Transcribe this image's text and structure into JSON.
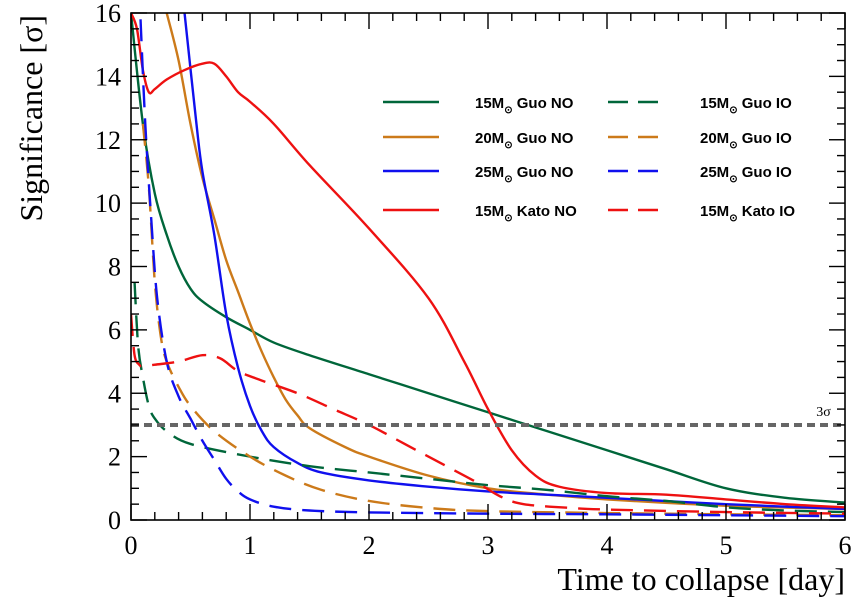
{
  "chart_data": {
    "type": "line",
    "xlabel": "Time to collapse [day]",
    "ylabel": "Significance [σ]",
    "xlim": [
      0,
      6
    ],
    "ylim": [
      0,
      16
    ],
    "xticks": [
      "0",
      "1",
      "2",
      "3",
      "4",
      "5",
      "6"
    ],
    "yticks": [
      "0",
      "2",
      "4",
      "6",
      "8",
      "10",
      "12",
      "14",
      "16"
    ],
    "grid": false,
    "legend_position": "top-right",
    "reference_line": {
      "y": 3,
      "label": "3σ",
      "color": "#666666",
      "style": "dashed"
    },
    "series": [
      {
        "name": "15M⊙ Guo NO",
        "mass": "15M",
        "model": "Guo NO",
        "color": "#00663a",
        "dash": "solid",
        "points": [
          [
            0.0,
            16
          ],
          [
            0.1,
            12.5
          ],
          [
            0.2,
            10.3
          ],
          [
            0.3,
            9.0
          ],
          [
            0.4,
            8.0
          ],
          [
            0.5,
            7.3
          ],
          [
            0.6,
            6.9
          ],
          [
            0.8,
            6.4
          ],
          [
            1.0,
            6.0
          ],
          [
            1.2,
            5.6
          ],
          [
            1.5,
            5.2
          ],
          [
            2.0,
            4.6
          ],
          [
            2.5,
            4.0
          ],
          [
            3.0,
            3.4
          ],
          [
            3.5,
            2.8
          ],
          [
            4.0,
            2.2
          ],
          [
            4.5,
            1.6
          ],
          [
            5.0,
            1.0
          ],
          [
            5.5,
            0.7
          ],
          [
            6.0,
            0.55
          ]
        ]
      },
      {
        "name": "20M⊙ Guo NO",
        "mass": "20M",
        "model": "Guo NO",
        "color": "#cc7a1a",
        "dash": "solid",
        "points": [
          [
            0.3,
            16
          ],
          [
            0.4,
            14.5
          ],
          [
            0.5,
            12.5
          ],
          [
            0.6,
            10.8
          ],
          [
            0.7,
            9.5
          ],
          [
            0.8,
            8.2
          ],
          [
            0.9,
            7.2
          ],
          [
            1.0,
            6.2
          ],
          [
            1.1,
            5.3
          ],
          [
            1.2,
            4.5
          ],
          [
            1.3,
            3.8
          ],
          [
            1.4,
            3.3
          ],
          [
            1.5,
            2.9
          ],
          [
            1.8,
            2.3
          ],
          [
            2.0,
            2.0
          ],
          [
            2.5,
            1.4
          ],
          [
            3.0,
            1.0
          ],
          [
            3.5,
            0.8
          ],
          [
            4.0,
            0.65
          ],
          [
            5.0,
            0.45
          ],
          [
            6.0,
            0.35
          ]
        ]
      },
      {
        "name": "25M⊙ Guo NO",
        "mass": "25M",
        "model": "Guo NO",
        "color": "#1010ee",
        "dash": "solid",
        "points": [
          [
            0.45,
            16
          ],
          [
            0.55,
            12.5
          ],
          [
            0.6,
            11.0
          ],
          [
            0.7,
            9.0
          ],
          [
            0.8,
            6.5
          ],
          [
            0.9,
            4.8
          ],
          [
            1.0,
            3.6
          ],
          [
            1.1,
            2.8
          ],
          [
            1.2,
            2.3
          ],
          [
            1.4,
            1.8
          ],
          [
            1.6,
            1.5
          ],
          [
            2.0,
            1.25
          ],
          [
            2.5,
            1.05
          ],
          [
            3.0,
            0.9
          ],
          [
            3.5,
            0.8
          ],
          [
            4.0,
            0.7
          ],
          [
            5.0,
            0.5
          ],
          [
            6.0,
            0.35
          ]
        ]
      },
      {
        "name": "15M⊙ Kato NO",
        "mass": "15M",
        "model": "Kato NO",
        "color": "#ee1111",
        "dash": "solid",
        "points": [
          [
            0.0,
            16
          ],
          [
            0.05,
            15.5
          ],
          [
            0.1,
            14.2
          ],
          [
            0.15,
            13.5
          ],
          [
            0.2,
            13.6
          ],
          [
            0.3,
            13.9
          ],
          [
            0.45,
            14.2
          ],
          [
            0.6,
            14.4
          ],
          [
            0.7,
            14.4
          ],
          [
            0.8,
            14.0
          ],
          [
            0.9,
            13.5
          ],
          [
            1.0,
            13.2
          ],
          [
            1.2,
            12.5
          ],
          [
            1.5,
            11.2
          ],
          [
            2.0,
            9.2
          ],
          [
            2.5,
            7.0
          ],
          [
            2.8,
            5.0
          ],
          [
            3.0,
            3.5
          ],
          [
            3.2,
            2.2
          ],
          [
            3.4,
            1.4
          ],
          [
            3.6,
            1.05
          ],
          [
            4.0,
            0.85
          ],
          [
            4.5,
            0.8
          ],
          [
            5.0,
            0.65
          ],
          [
            5.5,
            0.5
          ],
          [
            6.0,
            0.4
          ]
        ]
      },
      {
        "name": "15M⊙ Guo IO",
        "mass": "15M",
        "model": "Guo IO",
        "color": "#00663a",
        "dash": "dashed",
        "points": [
          [
            0.03,
            7.5
          ],
          [
            0.06,
            5.5
          ],
          [
            0.1,
            4.5
          ],
          [
            0.15,
            3.6
          ],
          [
            0.2,
            3.2
          ],
          [
            0.3,
            2.8
          ],
          [
            0.5,
            2.4
          ],
          [
            1.0,
            2.0
          ],
          [
            1.5,
            1.7
          ],
          [
            2.0,
            1.5
          ],
          [
            2.5,
            1.3
          ],
          [
            3.0,
            1.1
          ],
          [
            3.5,
            0.95
          ],
          [
            4.0,
            0.75
          ],
          [
            4.5,
            0.6
          ],
          [
            5.0,
            0.4
          ],
          [
            5.5,
            0.3
          ],
          [
            6.0,
            0.25
          ]
        ]
      },
      {
        "name": "20M⊙ Guo IO",
        "mass": "20M",
        "model": "Guo IO",
        "color": "#cc7a1a",
        "dash": "dashed",
        "points": [
          [
            0.1,
            12.5
          ],
          [
            0.15,
            10.5
          ],
          [
            0.2,
            7.5
          ],
          [
            0.25,
            5.8
          ],
          [
            0.3,
            5.0
          ],
          [
            0.4,
            4.2
          ],
          [
            0.5,
            3.6
          ],
          [
            0.7,
            2.8
          ],
          [
            1.0,
            2.0
          ],
          [
            1.3,
            1.4
          ],
          [
            1.6,
            0.95
          ],
          [
            2.0,
            0.6
          ],
          [
            2.5,
            0.38
          ],
          [
            3.0,
            0.28
          ],
          [
            4.0,
            0.22
          ],
          [
            5.0,
            0.18
          ],
          [
            6.0,
            0.15
          ]
        ]
      },
      {
        "name": "25M⊙ Guo IO",
        "mass": "25M",
        "model": "Guo IO",
        "color": "#1010ee",
        "dash": "dashed",
        "points": [
          [
            0.08,
            15.8
          ],
          [
            0.12,
            12.5
          ],
          [
            0.17,
            9.5
          ],
          [
            0.22,
            7.0
          ],
          [
            0.3,
            5.0
          ],
          [
            0.4,
            3.9
          ],
          [
            0.5,
            3.2
          ],
          [
            0.6,
            2.5
          ],
          [
            0.7,
            1.9
          ],
          [
            0.8,
            1.3
          ],
          [
            0.9,
            0.9
          ],
          [
            1.0,
            0.65
          ],
          [
            1.2,
            0.42
          ],
          [
            1.5,
            0.3
          ],
          [
            2.0,
            0.24
          ],
          [
            3.0,
            0.2
          ],
          [
            4.0,
            0.18
          ],
          [
            5.0,
            0.15
          ],
          [
            6.0,
            0.12
          ]
        ]
      },
      {
        "name": "15M⊙ Kato IO",
        "mass": "15M",
        "model": "Kato IO",
        "color": "#ee1111",
        "dash": "dashed",
        "points": [
          [
            0.0,
            6.5
          ],
          [
            0.03,
            5.2
          ],
          [
            0.07,
            4.9
          ],
          [
            0.1,
            4.85
          ],
          [
            0.2,
            4.9
          ],
          [
            0.4,
            5.0
          ],
          [
            0.6,
            5.2
          ],
          [
            0.75,
            5.1
          ],
          [
            0.9,
            4.7
          ],
          [
            1.1,
            4.4
          ],
          [
            1.4,
            4.0
          ],
          [
            1.7,
            3.5
          ],
          [
            2.0,
            3.0
          ],
          [
            2.3,
            2.4
          ],
          [
            2.6,
            1.8
          ],
          [
            2.9,
            1.2
          ],
          [
            3.1,
            0.75
          ],
          [
            3.3,
            0.5
          ],
          [
            3.7,
            0.38
          ],
          [
            4.0,
            0.33
          ],
          [
            5.0,
            0.25
          ],
          [
            6.0,
            0.2
          ]
        ]
      }
    ]
  }
}
